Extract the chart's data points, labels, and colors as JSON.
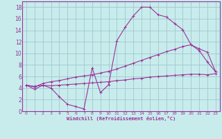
{
  "xlabel": "Windchill (Refroidissement éolien,°C)",
  "ylabel": "",
  "xlim": [
    -0.5,
    23.5
  ],
  "ylim": [
    0,
    19
  ],
  "xticks": [
    0,
    1,
    2,
    3,
    4,
    5,
    6,
    7,
    8,
    9,
    10,
    11,
    12,
    13,
    14,
    15,
    16,
    17,
    18,
    19,
    20,
    21,
    22,
    23
  ],
  "yticks": [
    0,
    2,
    4,
    6,
    8,
    10,
    12,
    14,
    16,
    18
  ],
  "background_color": "#c8ecec",
  "grid_color": "#a0c8d0",
  "line_color": "#993399",
  "line1_x": [
    0,
    1,
    2,
    3,
    4,
    5,
    6,
    7,
    8,
    9,
    10,
    11,
    12,
    13,
    14,
    15,
    16,
    17,
    18,
    19,
    20,
    21,
    22,
    23
  ],
  "line1_y": [
    4.5,
    3.8,
    4.5,
    4.0,
    2.5,
    1.2,
    0.8,
    0.4,
    7.5,
    3.2,
    4.6,
    12.2,
    14.5,
    16.5,
    18.0,
    18.0,
    16.7,
    16.3,
    15.2,
    14.1,
    11.5,
    10.5,
    8.5,
    6.8
  ],
  "line2_x": [
    0,
    1,
    2,
    3,
    4,
    5,
    6,
    7,
    8,
    9,
    10,
    11,
    12,
    13,
    14,
    15,
    16,
    17,
    18,
    19,
    20,
    21,
    22,
    23
  ],
  "line2_y": [
    4.5,
    4.2,
    4.8,
    5.1,
    5.3,
    5.6,
    5.9,
    6.1,
    6.3,
    6.6,
    6.9,
    7.3,
    7.8,
    8.3,
    8.8,
    9.3,
    9.8,
    10.3,
    10.7,
    11.2,
    11.5,
    10.8,
    10.2,
    6.8
  ],
  "line3_x": [
    0,
    1,
    2,
    3,
    4,
    5,
    6,
    7,
    8,
    9,
    10,
    11,
    12,
    13,
    14,
    15,
    16,
    17,
    18,
    19,
    20,
    21,
    22,
    23
  ],
  "line3_y": [
    4.5,
    4.3,
    4.5,
    4.4,
    4.5,
    4.6,
    4.7,
    4.8,
    4.9,
    5.0,
    5.1,
    5.3,
    5.4,
    5.6,
    5.7,
    5.9,
    6.0,
    6.1,
    6.2,
    6.3,
    6.4,
    6.4,
    6.3,
    6.5
  ]
}
